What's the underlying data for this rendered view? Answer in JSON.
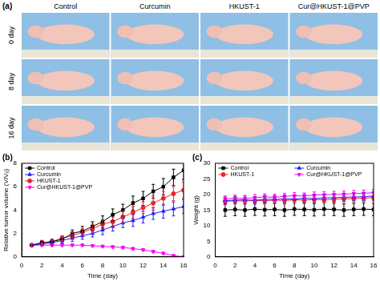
{
  "photo_panel": {
    "label": "(a)",
    "columns": [
      "Control",
      "Curcumin",
      "HKUST-1",
      "Cur@HKUST-1@PVP"
    ],
    "rows": [
      "0 day",
      "8 day",
      "16 day"
    ]
  },
  "chart_data": [
    {
      "type": "line",
      "panel": "(b)",
      "x_label": "Time (day)",
      "y_label": "Relative tumor volume (V/V₀)",
      "x": [
        1,
        2,
        3,
        4,
        5,
        6,
        7,
        8,
        9,
        10,
        11,
        12,
        13,
        14,
        15,
        16
      ],
      "series": [
        {
          "name": "Control",
          "color": "#000000",
          "marker": "square",
          "line_style": "solid",
          "values": [
            1.0,
            1.2,
            1.3,
            1.5,
            2.0,
            2.2,
            2.6,
            3.0,
            3.6,
            4.0,
            4.6,
            5.0,
            5.6,
            6.0,
            6.8,
            7.4
          ],
          "errors": [
            0.1,
            0.2,
            0.2,
            0.3,
            0.3,
            0.4,
            0.4,
            0.5,
            0.5,
            0.5,
            0.6,
            0.6,
            0.6,
            0.7,
            0.7,
            0.8
          ]
        },
        {
          "name": "Curcumin",
          "color": "#2020ff",
          "marker": "triangle",
          "line_style": "solid",
          "values": [
            1.0,
            1.1,
            1.2,
            1.4,
            1.6,
            1.8,
            2.0,
            2.3,
            2.6,
            2.9,
            3.1,
            3.4,
            3.7,
            3.9,
            4.1,
            4.3
          ],
          "errors": [
            0.1,
            0.1,
            0.2,
            0.2,
            0.3,
            0.3,
            0.3,
            0.4,
            0.4,
            0.4,
            0.5,
            0.5,
            0.5,
            0.6,
            0.6,
            0.6
          ]
        },
        {
          "name": "HKUST-1",
          "color": "#e8262b",
          "marker": "circle",
          "line_style": "solid",
          "values": [
            1.0,
            1.2,
            1.3,
            1.6,
            1.8,
            2.1,
            2.4,
            2.8,
            3.0,
            3.4,
            3.8,
            4.2,
            4.6,
            5.0,
            5.4,
            5.7
          ],
          "errors": [
            0.1,
            0.2,
            0.2,
            0.2,
            0.3,
            0.3,
            0.4,
            0.4,
            0.4,
            0.5,
            0.5,
            0.5,
            0.6,
            0.6,
            0.6,
            0.7
          ]
        },
        {
          "name": "Cur@HKUST-1@PVP",
          "color": "#ff00ff",
          "marker": "triangle-down",
          "line_style": "solid",
          "values": [
            1.0,
            1.0,
            1.0,
            1.0,
            1.0,
            1.0,
            0.95,
            0.9,
            0.85,
            0.8,
            0.7,
            0.6,
            0.45,
            0.3,
            0.1,
            0.0
          ],
          "errors": [
            0.1,
            0.1,
            0.1,
            0.1,
            0.1,
            0.1,
            0.1,
            0.1,
            0.1,
            0.1,
            0.1,
            0.1,
            0.1,
            0.1,
            0.1,
            0.1
          ]
        }
      ],
      "xlim": [
        0,
        16
      ],
      "xticks": [
        0,
        2,
        4,
        6,
        8,
        10,
        12,
        14,
        16
      ],
      "ylim": [
        0,
        8
      ],
      "yticks": [
        0,
        2,
        4,
        6,
        8
      ],
      "grid": false,
      "legend": "upper left"
    },
    {
      "type": "line",
      "panel": "(c)",
      "x_label": "Time (day)",
      "y_label": "Weight (g)",
      "x": [
        1,
        2,
        3,
        4,
        5,
        6,
        7,
        8,
        9,
        10,
        11,
        12,
        13,
        14,
        15,
        16
      ],
      "series": [
        {
          "name": "Control",
          "color": "#000000",
          "marker": "square",
          "line_style": "solid",
          "values": [
            15.0,
            15.2,
            15.0,
            15.3,
            15.1,
            15.2,
            15.0,
            15.3,
            15.2,
            15.1,
            15.3,
            15.2,
            15.0,
            15.2,
            15.3,
            15.2
          ],
          "errors": [
            2.0,
            2.0,
            2.0,
            2.0,
            2.0,
            2.0,
            2.0,
            2.0,
            2.0,
            2.0,
            2.0,
            2.0,
            2.0,
            2.0,
            2.0,
            2.0
          ]
        },
        {
          "name": "Curcumin",
          "color": "#2020ff",
          "marker": "triangle",
          "line_style": "solid",
          "values": [
            18.0,
            18.2,
            18.3,
            18.1,
            18.5,
            18.4,
            18.6,
            18.5,
            18.8,
            18.7,
            18.9,
            19.0,
            19.1,
            19.2,
            19.3,
            19.5
          ],
          "errors": [
            1.2,
            1.2,
            1.2,
            1.2,
            1.2,
            1.2,
            1.2,
            1.2,
            1.2,
            1.2,
            1.2,
            1.2,
            1.2,
            1.2,
            1.2,
            1.2
          ]
        },
        {
          "name": "HKUST-1",
          "color": "#e8262b",
          "marker": "circle",
          "line_style": "solid",
          "values": [
            17.8,
            18.0,
            17.9,
            18.1,
            18.0,
            18.2,
            18.1,
            18.3,
            18.2,
            18.4,
            18.3,
            18.5,
            18.6,
            18.7,
            18.8,
            19.0
          ],
          "errors": [
            1.0,
            1.0,
            1.0,
            1.0,
            1.0,
            1.0,
            1.0,
            1.0,
            1.0,
            1.0,
            1.0,
            1.0,
            1.0,
            1.0,
            1.0,
            1.0
          ]
        },
        {
          "name": "Cur@HKUST-1@PVP",
          "color": "#ff00ff",
          "marker": "triangle-down",
          "line_style": "solid",
          "values": [
            18.5,
            18.8,
            18.7,
            19.0,
            19.2,
            19.1,
            19.4,
            19.6,
            19.5,
            19.8,
            19.9,
            20.0,
            20.1,
            20.3,
            20.4,
            20.6
          ],
          "errors": [
            1.0,
            1.0,
            1.0,
            1.0,
            1.0,
            1.0,
            1.0,
            1.0,
            1.0,
            1.0,
            1.0,
            1.0,
            1.0,
            1.0,
            1.0,
            1.0
          ]
        }
      ],
      "xlim": [
        0,
        16
      ],
      "xticks": [
        0,
        2,
        4,
        6,
        8,
        10,
        12,
        14,
        16
      ],
      "ylim": [
        0,
        30
      ],
      "yticks": [
        0,
        5,
        10,
        15,
        20,
        25,
        30
      ],
      "grid": false,
      "legend": "upper left"
    }
  ]
}
